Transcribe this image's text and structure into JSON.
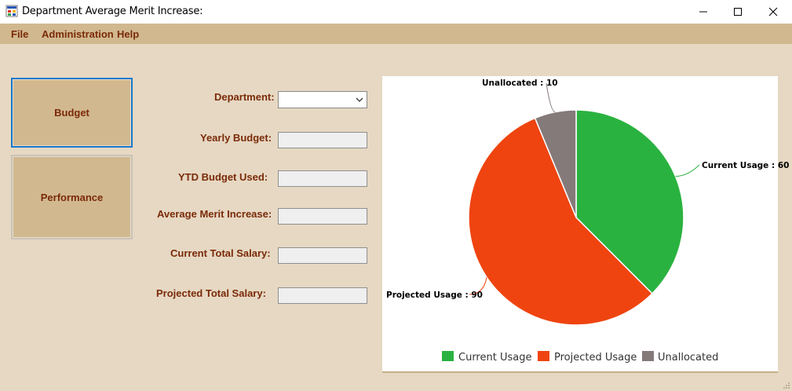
{
  "window": {
    "title": "Department Average Merit Increase:",
    "minimize_icon": "minimize-icon",
    "maximize_icon": "maximize-icon",
    "close_icon": "close-icon"
  },
  "menu": {
    "items": [
      "File",
      "Administration",
      "Help"
    ]
  },
  "sidebar": {
    "buttons": [
      "Budget",
      "Performance"
    ]
  },
  "form": {
    "department_label": "Department:",
    "yearly_budget_label": "Yearly Budget:",
    "ytd_budget_used_label": "YTD Budget Used:",
    "average_merit_increase_label": "Average Merit Increase:",
    "current_total_salary_label": "Current Total Salary:",
    "projected_total_salary_label": "Projected Total Salary:",
    "department_value": "",
    "yearly_budget_value": "",
    "ytd_budget_used_value": "",
    "average_merit_increase_value": "",
    "current_total_salary_value": "",
    "projected_total_salary_value": ""
  },
  "chart_data": {
    "type": "pie",
    "title": "",
    "slices": [
      {
        "name": "Current Usage",
        "value": 60,
        "label": "Current Usage : 60",
        "color": "#2ab240"
      },
      {
        "name": "Projected Usage",
        "value": 90,
        "label": "Projected Usage : 90",
        "color": "#ef4410"
      },
      {
        "name": "Unallocated",
        "value": 10,
        "label": "Unallocated : 10",
        "color": "#857a7a"
      }
    ],
    "legend_position": "bottom"
  },
  "colors": {
    "background": "#e6d8c3",
    "menubar": "#d1b88f",
    "label_text": "#7a2a08",
    "selected_border": "#1979ca"
  }
}
